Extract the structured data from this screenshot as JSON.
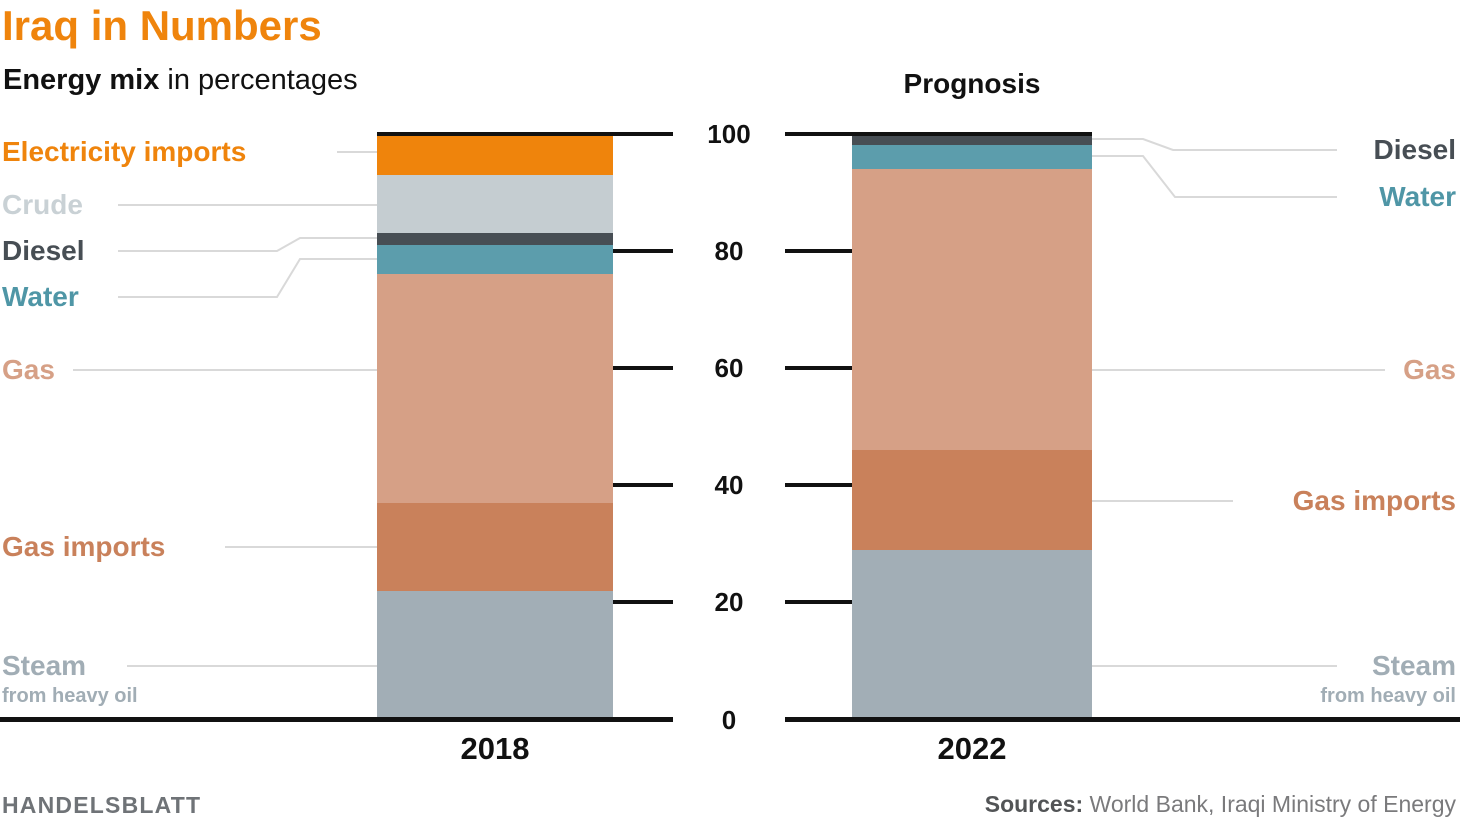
{
  "header": {
    "title": "Iraq in Numbers",
    "subtitle_bold": "Energy mix",
    "subtitle_rest": " in percentages"
  },
  "prognosis_label": "Prognosis",
  "chart_data": {
    "type": "bar",
    "variant": "stacked-percentage-columns",
    "title": "Energy mix in percentages",
    "categories": [
      "2018",
      "2022"
    ],
    "y_ticks": [
      0,
      20,
      40,
      60,
      80,
      100
    ],
    "ylim": [
      0,
      100
    ],
    "unit": "percent",
    "grid": false,
    "legend_position": "callout-labels-left-and-right",
    "series": [
      {
        "name": "Electricity imports",
        "color": "#EF840C",
        "label_color": "#EF840C",
        "values": [
          7,
          0
        ]
      },
      {
        "name": "Crude",
        "color": "#C5CDD1",
        "label_color": "#C9D1D5",
        "values": [
          10,
          0
        ]
      },
      {
        "name": "Diesel",
        "color": "#474E54",
        "label_color": "#474E54",
        "values": [
          2,
          2
        ]
      },
      {
        "name": "Water",
        "color": "#5C9DAC",
        "label_color": "#4F96A6",
        "values": [
          5,
          4
        ]
      },
      {
        "name": "Gas",
        "color": "#D6A086",
        "label_color": "#D6A086",
        "values": [
          39,
          48
        ]
      },
      {
        "name": "Gas imports",
        "color": "#C9815B",
        "label_color": "#C9815B",
        "values": [
          15,
          17
        ]
      },
      {
        "name": "Steam",
        "sublabel": "from heavy oil",
        "color": "#A2AEB6",
        "label_color": "#A1ADB5",
        "values": [
          22,
          29
        ]
      }
    ],
    "axis_color": "#111111",
    "connector_color": "#D9D9D9",
    "accent_color": "#EF840C"
  },
  "footer": {
    "brand": "HANDELSBLATT",
    "sources_bold": "Sources:",
    "sources_rest": " World Bank, Iraqi Ministry of Energy"
  }
}
